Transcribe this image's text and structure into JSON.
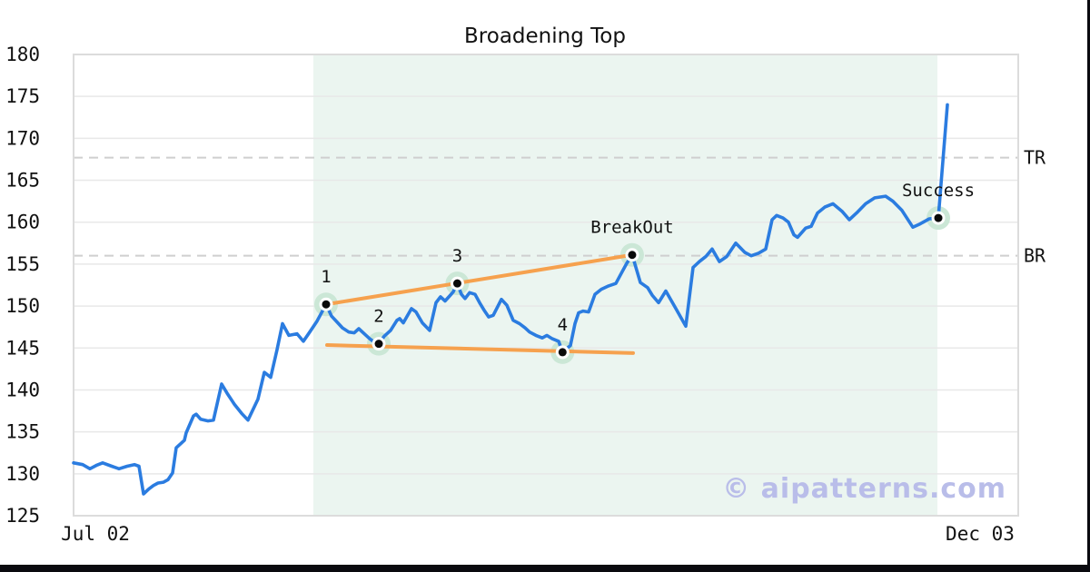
{
  "watermark": "© aipatterns.com",
  "chart_data": {
    "type": "line",
    "title": "Broadening Top",
    "xlabel": "",
    "ylabel": "",
    "ylim": [
      125,
      180
    ],
    "grid": true,
    "y_ticks": [
      180,
      175,
      170,
      165,
      160,
      155,
      150,
      145,
      140,
      135,
      130,
      125
    ],
    "x_ticks": [
      {
        "label": "Jul 02",
        "f": 0.0231
      },
      {
        "label": "Dec 03",
        "f": 0.9596
      }
    ],
    "hlines": [
      {
        "label": "TR",
        "value": 167.7
      },
      {
        "label": "BR",
        "value": 156.0
      }
    ],
    "pattern_region": {
      "x_start_frac": 0.2538,
      "x_end_frac": 0.9144
    },
    "trendlines": [
      {
        "name": "upper-broadening-line",
        "f1": 0.2673,
        "v1": 150.2,
        "f2": 0.5913,
        "v2": 156.1
      },
      {
        "name": "lower-broadening-line",
        "f1": 0.2683,
        "v1": 145.35,
        "f2": 0.5923,
        "v2": 144.4
      }
    ],
    "annotations": [
      {
        "label": "1",
        "f": 0.2673,
        "value": 150.2
      },
      {
        "label": "2",
        "f": 0.3231,
        "value": 145.5
      },
      {
        "label": "3",
        "f": 0.4062,
        "value": 152.7
      },
      {
        "label": "4",
        "f": 0.5176,
        "value": 144.5
      },
      {
        "label": "BreakOut",
        "f": 0.5913,
        "value": 156.1
      },
      {
        "label": "Success",
        "f": 0.9154,
        "value": 160.5
      }
    ],
    "series": [
      {
        "name": "price",
        "points": [
          [
            0.0,
            131.3
          ],
          [
            0.0096,
            131.1
          ],
          [
            0.0173,
            130.6
          ],
          [
            0.024,
            131.0
          ],
          [
            0.0308,
            131.3
          ],
          [
            0.0404,
            130.9
          ],
          [
            0.0481,
            130.6
          ],
          [
            0.0567,
            130.9
          ],
          [
            0.0644,
            131.1
          ],
          [
            0.0692,
            130.9
          ],
          [
            0.074,
            127.6
          ],
          [
            0.0798,
            128.2
          ],
          [
            0.0846,
            128.6
          ],
          [
            0.0894,
            128.9
          ],
          [
            0.0952,
            129.0
          ],
          [
            0.1,
            129.3
          ],
          [
            0.1048,
            130.1
          ],
          [
            0.1087,
            133.1
          ],
          [
            0.1173,
            134.0
          ],
          [
            0.1192,
            134.9
          ],
          [
            0.1269,
            136.9
          ],
          [
            0.1298,
            137.1
          ],
          [
            0.1346,
            136.5
          ],
          [
            0.1423,
            136.3
          ],
          [
            0.1481,
            136.4
          ],
          [
            0.1567,
            140.7
          ],
          [
            0.1625,
            139.6
          ],
          [
            0.1702,
            138.3
          ],
          [
            0.1779,
            137.2
          ],
          [
            0.1846,
            136.4
          ],
          [
            0.1952,
            138.9
          ],
          [
            0.2019,
            142.1
          ],
          [
            0.2087,
            141.5
          ],
          [
            0.2154,
            144.8
          ],
          [
            0.2212,
            147.9
          ],
          [
            0.2279,
            146.5
          ],
          [
            0.2365,
            146.7
          ],
          [
            0.2433,
            145.8
          ],
          [
            0.25,
            146.9
          ],
          [
            0.2577,
            148.2
          ],
          [
            0.2673,
            150.2
          ],
          [
            0.2731,
            148.8
          ],
          [
            0.2788,
            148.1
          ],
          [
            0.2846,
            147.4
          ],
          [
            0.2913,
            146.9
          ],
          [
            0.2971,
            146.8
          ],
          [
            0.3019,
            147.3
          ],
          [
            0.3077,
            146.7
          ],
          [
            0.3135,
            146.1
          ],
          [
            0.3183,
            145.7
          ],
          [
            0.3231,
            145.5
          ],
          [
            0.3288,
            146.4
          ],
          [
            0.3356,
            147.1
          ],
          [
            0.3423,
            148.3
          ],
          [
            0.3452,
            148.5
          ],
          [
            0.349,
            148.0
          ],
          [
            0.3577,
            149.7
          ],
          [
            0.3625,
            149.3
          ],
          [
            0.3692,
            148.0
          ],
          [
            0.3769,
            147.1
          ],
          [
            0.3837,
            150.4
          ],
          [
            0.3885,
            151.1
          ],
          [
            0.3933,
            150.6
          ],
          [
            0.3981,
            151.2
          ],
          [
            0.4019,
            151.7
          ],
          [
            0.4062,
            152.7
          ],
          [
            0.4106,
            151.4
          ],
          [
            0.4144,
            150.9
          ],
          [
            0.4192,
            151.6
          ],
          [
            0.425,
            151.4
          ],
          [
            0.4298,
            150.4
          ],
          [
            0.4346,
            149.5
          ],
          [
            0.4394,
            148.7
          ],
          [
            0.4442,
            148.9
          ],
          [
            0.4529,
            150.8
          ],
          [
            0.4587,
            150.1
          ],
          [
            0.4654,
            148.3
          ],
          [
            0.4721,
            147.9
          ],
          [
            0.4779,
            147.4
          ],
          [
            0.4827,
            146.9
          ],
          [
            0.4894,
            146.5
          ],
          [
            0.4962,
            146.2
          ],
          [
            0.501,
            146.5
          ],
          [
            0.5067,
            146.1
          ],
          [
            0.5135,
            145.8
          ],
          [
            0.5176,
            144.5
          ],
          [
            0.526,
            145.3
          ],
          [
            0.5308,
            147.9
          ],
          [
            0.5346,
            149.2
          ],
          [
            0.5394,
            149.4
          ],
          [
            0.5452,
            149.3
          ],
          [
            0.5519,
            151.4
          ],
          [
            0.5587,
            152.0
          ],
          [
            0.5663,
            152.4
          ],
          [
            0.574,
            152.7
          ],
          [
            0.5808,
            154.1
          ],
          [
            0.5856,
            155.1
          ],
          [
            0.5913,
            156.1
          ],
          [
            0.6,
            152.8
          ],
          [
            0.6077,
            152.2
          ],
          [
            0.6125,
            151.3
          ],
          [
            0.6192,
            150.4
          ],
          [
            0.6269,
            151.8
          ],
          [
            0.6365,
            149.9
          ],
          [
            0.6481,
            147.6
          ],
          [
            0.6558,
            154.6
          ],
          [
            0.6625,
            155.3
          ],
          [
            0.6692,
            155.9
          ],
          [
            0.676,
            156.8
          ],
          [
            0.6837,
            155.3
          ],
          [
            0.6913,
            155.9
          ],
          [
            0.701,
            157.5
          ],
          [
            0.7106,
            156.4
          ],
          [
            0.7173,
            156.0
          ],
          [
            0.725,
            156.3
          ],
          [
            0.7327,
            156.8
          ],
          [
            0.7394,
            160.3
          ],
          [
            0.7442,
            160.8
          ],
          [
            0.751,
            160.5
          ],
          [
            0.7567,
            160.0
          ],
          [
            0.7625,
            158.5
          ],
          [
            0.7663,
            158.2
          ],
          [
            0.775,
            159.3
          ],
          [
            0.7808,
            159.5
          ],
          [
            0.7875,
            161.1
          ],
          [
            0.7952,
            161.8
          ],
          [
            0.8038,
            162.2
          ],
          [
            0.8135,
            161.3
          ],
          [
            0.8212,
            160.3
          ],
          [
            0.8288,
            161.1
          ],
          [
            0.8385,
            162.2
          ],
          [
            0.8481,
            162.9
          ],
          [
            0.8596,
            163.1
          ],
          [
            0.8673,
            162.5
          ],
          [
            0.8769,
            161.4
          ],
          [
            0.8885,
            159.4
          ],
          [
            0.8962,
            159.8
          ],
          [
            0.9058,
            160.4
          ],
          [
            0.9154,
            160.5
          ],
          [
            0.925,
            174.0
          ]
        ]
      }
    ],
    "colors": {
      "line": "#2b7ce0",
      "trendline": "#f6a14e",
      "pattern_fill": "#ebf5f0",
      "marker_halo": "#cbe7d6",
      "marker_ring": "#ffffff",
      "marker_dot": "#0a0a0a",
      "dashed_line": "#cfcfcf",
      "grid": "#e8e8e8",
      "axis_border": "#dcdcdc",
      "text": "#111111",
      "watermark": "#b9bde9"
    }
  }
}
